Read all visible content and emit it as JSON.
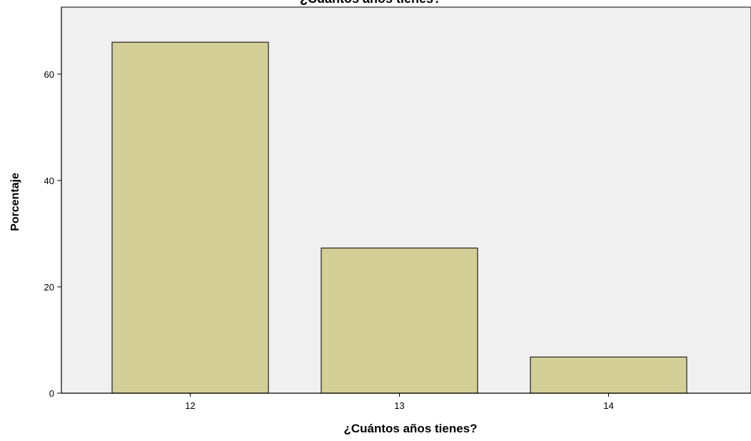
{
  "chart_data": {
    "type": "bar",
    "title": "¿Cuántos años tienes?",
    "xlabel": "¿Cuántos años tienes?",
    "ylabel": "Porcentaje",
    "categories": [
      "12",
      "13",
      "14"
    ],
    "values": [
      66.0,
      27.3,
      6.8
    ],
    "ylim": [
      0,
      72.6
    ],
    "yticks": [
      0,
      20,
      40,
      60
    ],
    "grid": false,
    "colors": {
      "bar_fill": "#d4cf96",
      "bar_stroke": "#222222",
      "plot_background": "#f0f0f0",
      "axis": "#000000"
    }
  }
}
